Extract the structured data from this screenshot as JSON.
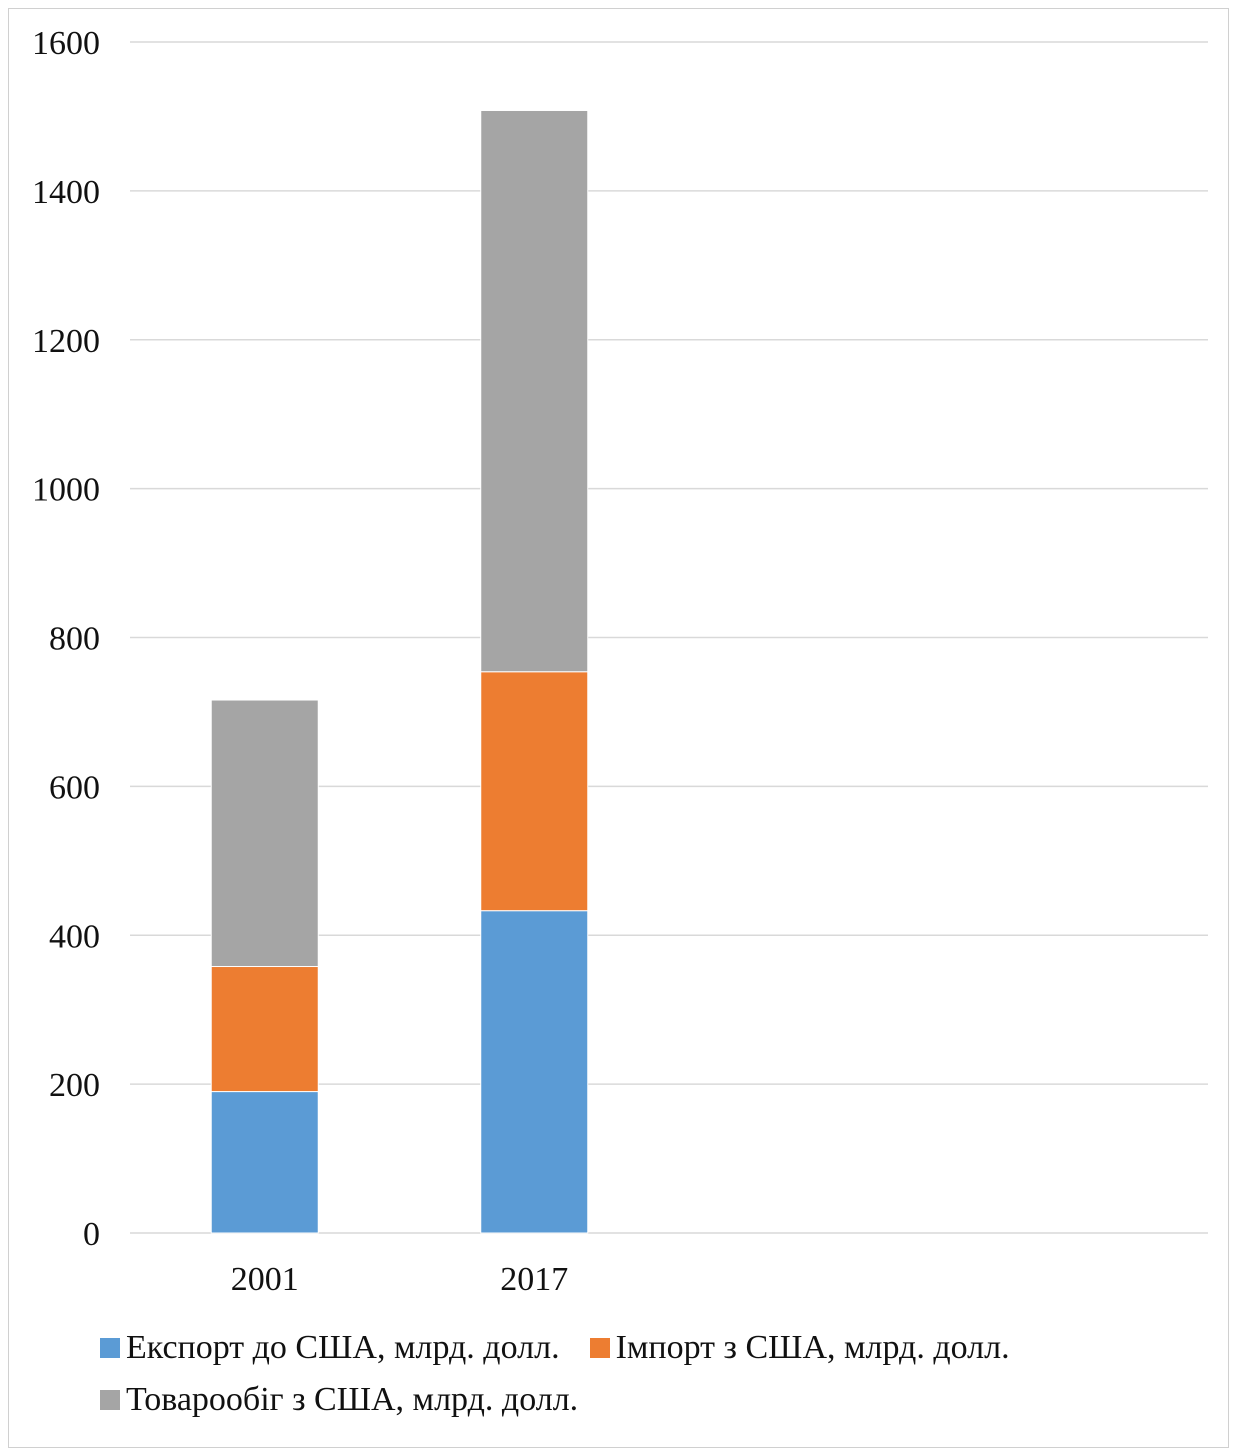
{
  "chart_data": {
    "type": "bar",
    "stacked": true,
    "title": "",
    "xlabel": "",
    "ylabel": "",
    "categories": [
      "2001",
      "2017"
    ],
    "ylim": [
      0,
      1600
    ],
    "yticks": [
      "0",
      "200",
      "400",
      "600",
      "800",
      "1000",
      "1200",
      "1400",
      "1600"
    ],
    "grid": true,
    "legend_position": "bottom",
    "series": [
      {
        "name": "Експорт до США, млрд. долл.",
        "values": [
          190,
          433
        ],
        "color": "#5b9bd5"
      },
      {
        "name": "Імпорт з США, млрд. долл.",
        "values": [
          168,
          321
        ],
        "color": "#ed7d31"
      },
      {
        "name": "Товарообіг з США, млрд. долл.",
        "values": [
          358,
          754
        ],
        "color": "#a5a5a5"
      }
    ]
  }
}
